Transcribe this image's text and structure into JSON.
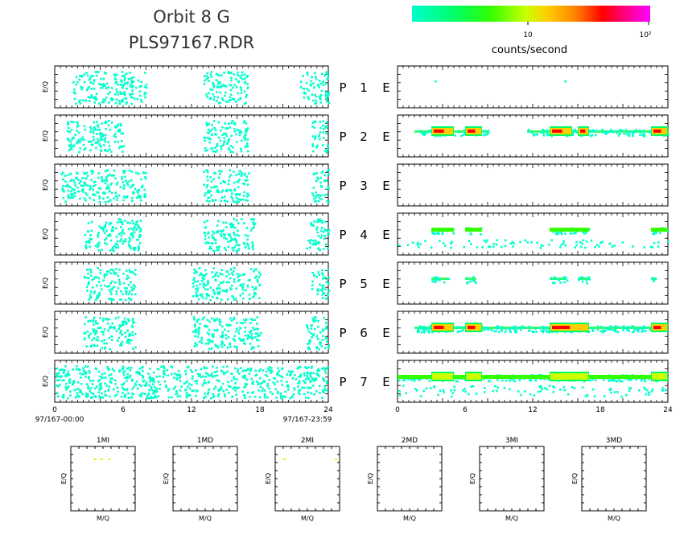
{
  "header": {
    "title": "Orbit 8 G",
    "subtitle": "PLS97167.RDR"
  },
  "colorbar": {
    "tick_10": "10",
    "tick_100": "10²",
    "label": "counts/second",
    "colors": [
      "#00ffcc",
      "#00ff66",
      "#33ff00",
      "#ccff00",
      "#ffdd00",
      "#ff8800",
      "#ff0000",
      "#ff0088",
      "#ff00cc",
      "#ff00ff"
    ]
  },
  "panel_ylabel": "E/Q",
  "rows": [
    {
      "p": "P",
      "n": "1",
      "e": "E"
    },
    {
      "p": "P",
      "n": "2",
      "e": "E"
    },
    {
      "p": "P",
      "n": "3",
      "e": "E"
    },
    {
      "p": "P",
      "n": "4",
      "e": "E"
    },
    {
      "p": "P",
      "n": "5",
      "e": "E"
    },
    {
      "p": "P",
      "n": "6",
      "e": "E"
    },
    {
      "p": "P",
      "n": "7",
      "e": "E"
    }
  ],
  "x_axis": {
    "ticks": [
      "0",
      "6",
      "12",
      "18",
      "24"
    ],
    "start_label": "97/167-00:00",
    "end_label": "97/167-23:59"
  },
  "mini_panels": {
    "titles": [
      "1MI",
      "1MD",
      "2MI",
      "2MD",
      "3MI",
      "3MD"
    ],
    "xlabel": "M/Q",
    "ylabel": "E/Q"
  },
  "chart_data": {
    "type": "heatmap",
    "x_range_hours": [
      0,
      24
    ],
    "color_scale": "log counts/second, ~1 to 10²",
    "left_column_activity": [
      {
        "row": 1,
        "level": "sparse",
        "clusters_hours": [
          [
            1.5,
            8
          ],
          [
            13,
            17
          ],
          [
            21.5,
            24
          ]
        ]
      },
      {
        "row": 2,
        "level": "sparse",
        "clusters_hours": [
          [
            1,
            6
          ],
          [
            13,
            17
          ],
          [
            22.5,
            24
          ]
        ]
      },
      {
        "row": 3,
        "level": "sparse",
        "clusters_hours": [
          [
            0.5,
            8
          ],
          [
            13,
            17
          ],
          [
            22.5,
            24
          ]
        ]
      },
      {
        "row": 4,
        "level": "sparse",
        "clusters_hours": [
          [
            2.5,
            7.5
          ],
          [
            13,
            17.5
          ],
          [
            22,
            24
          ]
        ]
      },
      {
        "row": 5,
        "level": "sparse",
        "clusters_hours": [
          [
            2.5,
            7
          ],
          [
            12,
            18
          ],
          [
            22.5,
            24
          ]
        ]
      },
      {
        "row": 6,
        "level": "sparse",
        "clusters_hours": [
          [
            2.5,
            7
          ],
          [
            12,
            18
          ],
          [
            22,
            24
          ]
        ]
      },
      {
        "row": 7,
        "level": "sparse",
        "clusters_hours": [
          [
            0,
            24
          ]
        ]
      }
    ],
    "right_column_activity": [
      {
        "row": 1,
        "level": "isolated points",
        "bands_hours": []
      },
      {
        "row": 2,
        "level": "intense",
        "bands_hours": [
          [
            1.5,
            8
          ],
          [
            11.5,
            24
          ]
        ],
        "peaks_hours": [
          [
            3,
            5
          ],
          [
            6,
            7.5
          ],
          [
            13.5,
            15.5
          ],
          [
            16,
            17
          ],
          [
            22.5,
            24
          ]
        ]
      },
      {
        "row": 3,
        "level": "empty",
        "bands_hours": []
      },
      {
        "row": 4,
        "level": "moderate",
        "bands_hours": [
          [
            3,
            5
          ],
          [
            6,
            7.5
          ],
          [
            13.5,
            17
          ],
          [
            22.5,
            24
          ]
        ]
      },
      {
        "row": 5,
        "level": "weak",
        "bands_hours": [
          [
            3,
            4.5
          ],
          [
            6,
            7
          ],
          [
            13.5,
            15
          ],
          [
            16,
            17
          ],
          [
            22.5,
            23
          ]
        ]
      },
      {
        "row": 6,
        "level": "intense",
        "bands_hours": [
          [
            1.5,
            24
          ]
        ],
        "peaks_hours": [
          [
            3,
            5
          ],
          [
            6,
            7.5
          ],
          [
            13.5,
            17
          ],
          [
            22.5,
            24
          ]
        ]
      },
      {
        "row": 7,
        "level": "moderate",
        "bands_hours": [
          [
            0,
            24
          ]
        ],
        "peaks_hours": [
          [
            3,
            5
          ],
          [
            6,
            7.5
          ],
          [
            13.5,
            17
          ],
          [
            22.5,
            24
          ]
        ]
      }
    ],
    "mini_panel_points": [
      {
        "panel": "1MI",
        "points": "few yellow points near top"
      },
      {
        "panel": "2MI",
        "points": "two points near top"
      }
    ]
  }
}
